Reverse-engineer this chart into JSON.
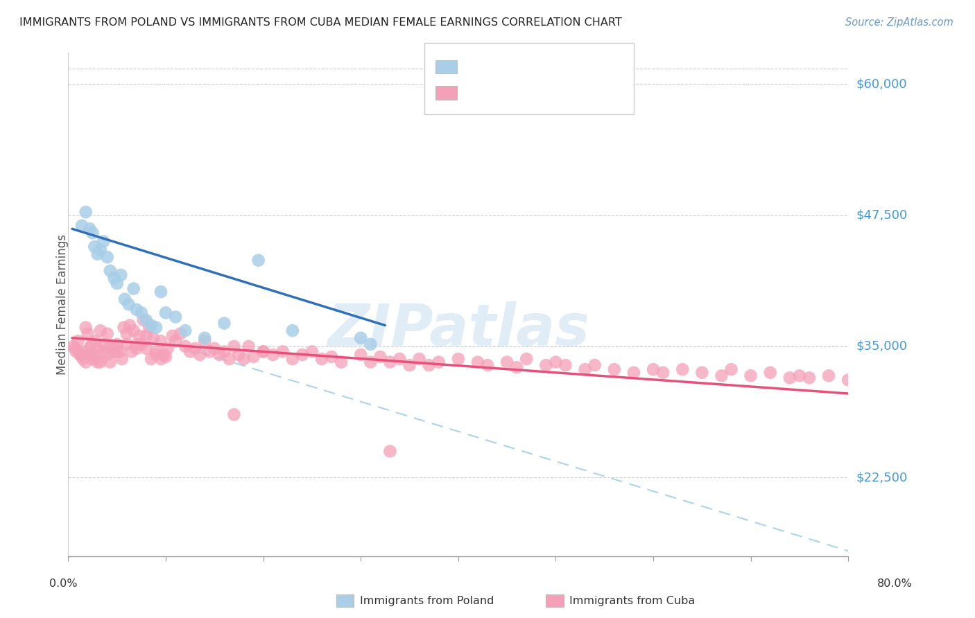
{
  "title": "IMMIGRANTS FROM POLAND VS IMMIGRANTS FROM CUBA MEDIAN FEMALE EARNINGS CORRELATION CHART",
  "source": "Source: ZipAtlas.com",
  "ylabel": "Median Female Earnings",
  "ytick_labels": [
    "$22,500",
    "$35,000",
    "$47,500",
    "$60,000"
  ],
  "ytick_values": [
    22500,
    35000,
    47500,
    60000
  ],
  "ymin": 15000,
  "ymax": 63000,
  "xmin": 0.0,
  "xmax": 0.8,
  "color_poland": "#A8CEE8",
  "color_cuba": "#F4A0B8",
  "color_poland_line": "#3070B8",
  "color_cuba_line": "#E8507A",
  "color_dashed_line": "#A8D4F0",
  "watermark_text": "ZIPatlas",
  "poland_x": [
    0.014,
    0.018,
    0.022,
    0.025,
    0.027,
    0.03,
    0.033,
    0.036,
    0.04,
    0.043,
    0.047,
    0.05,
    0.054,
    0.058,
    0.062,
    0.067,
    0.07,
    0.075,
    0.08,
    0.085,
    0.09,
    0.095,
    0.1,
    0.11,
    0.12,
    0.14,
    0.16,
    0.195,
    0.23,
    0.3,
    0.31
  ],
  "poland_y": [
    46500,
    47800,
    46200,
    45800,
    44500,
    43800,
    44200,
    45000,
    43500,
    42200,
    41500,
    41000,
    41800,
    39500,
    39000,
    40500,
    38500,
    38200,
    37500,
    37000,
    36800,
    40200,
    38200,
    37800,
    36500,
    35800,
    37200,
    43200,
    36500,
    35800,
    35200
  ],
  "cuba_x": [
    0.005,
    0.008,
    0.01,
    0.013,
    0.015,
    0.018,
    0.02,
    0.022,
    0.024,
    0.027,
    0.03,
    0.033,
    0.036,
    0.04,
    0.043,
    0.047,
    0.05,
    0.053,
    0.057,
    0.06,
    0.063,
    0.067,
    0.07,
    0.073,
    0.077,
    0.08,
    0.083,
    0.087,
    0.09,
    0.095,
    0.098,
    0.102,
    0.107,
    0.11,
    0.115,
    0.12,
    0.125,
    0.13,
    0.135,
    0.14,
    0.145,
    0.15,
    0.155,
    0.16,
    0.165,
    0.17,
    0.175,
    0.18,
    0.185,
    0.19,
    0.2,
    0.21,
    0.22,
    0.23,
    0.24,
    0.25,
    0.26,
    0.27,
    0.28,
    0.3,
    0.31,
    0.32,
    0.33,
    0.34,
    0.35,
    0.36,
    0.37,
    0.38,
    0.4,
    0.42,
    0.43,
    0.45,
    0.46,
    0.47,
    0.49,
    0.5,
    0.51,
    0.53,
    0.54,
    0.56,
    0.58,
    0.6,
    0.61,
    0.63,
    0.65,
    0.67,
    0.68,
    0.7,
    0.72,
    0.74,
    0.75,
    0.76,
    0.78,
    0.8,
    0.007,
    0.012,
    0.015,
    0.018,
    0.022,
    0.025,
    0.028,
    0.03,
    0.033,
    0.037,
    0.04,
    0.043,
    0.047,
    0.05,
    0.055,
    0.06,
    0.065,
    0.07,
    0.075,
    0.08,
    0.085,
    0.09,
    0.095,
    0.1,
    0.17,
    0.2,
    0.33
  ],
  "cuba_y": [
    35000,
    34500,
    35500,
    34200,
    33800,
    36800,
    36200,
    34800,
    35200,
    34200,
    33500,
    36500,
    34500,
    36200,
    35000,
    34500,
    35200,
    34500,
    36800,
    36200,
    37000,
    36500,
    35200,
    36000,
    37500,
    36000,
    36800,
    35800,
    34500,
    35500,
    34200,
    34800,
    36000,
    35500,
    36200,
    35000,
    34500,
    34800,
    34200,
    35500,
    34500,
    34800,
    34200,
    34500,
    33800,
    35000,
    34200,
    33800,
    35000,
    34000,
    34500,
    34200,
    34500,
    33800,
    34200,
    34500,
    33800,
    34000,
    33500,
    34200,
    33500,
    34000,
    33500,
    33800,
    33200,
    33800,
    33200,
    33500,
    33800,
    33500,
    33200,
    33500,
    33000,
    33800,
    33200,
    33500,
    33200,
    32800,
    33200,
    32800,
    32500,
    32800,
    32500,
    32800,
    32500,
    32200,
    32800,
    32200,
    32500,
    32000,
    32200,
    32000,
    32200,
    31800,
    34800,
    34200,
    34500,
    33500,
    34200,
    33800,
    35500,
    34800,
    33500,
    35200,
    34200,
    33500,
    35000,
    34500,
    33800,
    35200,
    34500,
    34800,
    35200,
    34800,
    33800,
    34200,
    33800,
    34000,
    28500,
    34500,
    25000
  ],
  "poland_line_x": [
    0.004,
    0.325
  ],
  "poland_line_y": [
    46200,
    37000
  ],
  "cuba_line_x": [
    0.004,
    0.8
  ],
  "cuba_line_y": [
    35800,
    30500
  ],
  "dash_line_x": [
    0.115,
    0.8
  ],
  "dash_line_y": [
    35000,
    15500
  ]
}
